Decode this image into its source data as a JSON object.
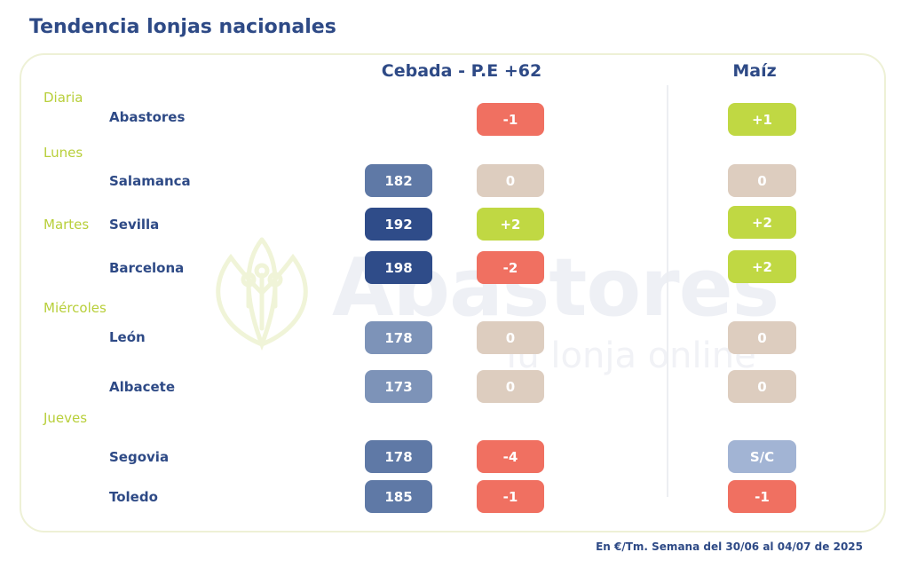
{
  "title": "Tendencia lonjas nacionales",
  "columns": {
    "cebada": "Cebada - P.E +62",
    "maiz": "Maíz"
  },
  "watermark": {
    "brand": "Abastores",
    "tagline": "Tu lonja online",
    "logo_icon": "sprout-circuit-icon"
  },
  "footer": "En €/Tm. Semana del 30/06 al 04/07 de 2025",
  "colors": {
    "title": "#2e4a86",
    "day": "#b8cf3a",
    "up": "#c0d843",
    "down": "#f07061",
    "neutral": "#ddcdbf",
    "price_dark": "#2f4c89",
    "price_mid": "#5f79a6",
    "price_light": "#7d93b8",
    "sc": "#a2b4d4"
  },
  "days": [
    "Diaria",
    "Lunes",
    "Martes",
    "Miércoles",
    "Jueves"
  ],
  "rows": [
    {
      "city": "Abastores",
      "price": "",
      "cebada_change": "-1",
      "maiz": "+1"
    },
    {
      "city": "Salamanca",
      "price": "182",
      "cebada_change": "0",
      "maiz": "0"
    },
    {
      "city": "Sevilla",
      "price": "192",
      "cebada_change": "+2",
      "maiz": "+2"
    },
    {
      "city": "Barcelona",
      "price": "198",
      "cebada_change": "-2",
      "maiz": "+2"
    },
    {
      "city": "León",
      "price": "178",
      "cebada_change": "0",
      "maiz": "0"
    },
    {
      "city": "Albacete",
      "price": "173",
      "cebada_change": "0",
      "maiz": "0"
    },
    {
      "city": "Segovia",
      "price": "178",
      "cebada_change": "-4",
      "maiz": "S/C"
    },
    {
      "city": "Toledo",
      "price": "185",
      "cebada_change": "-1",
      "maiz": "-1"
    }
  ]
}
